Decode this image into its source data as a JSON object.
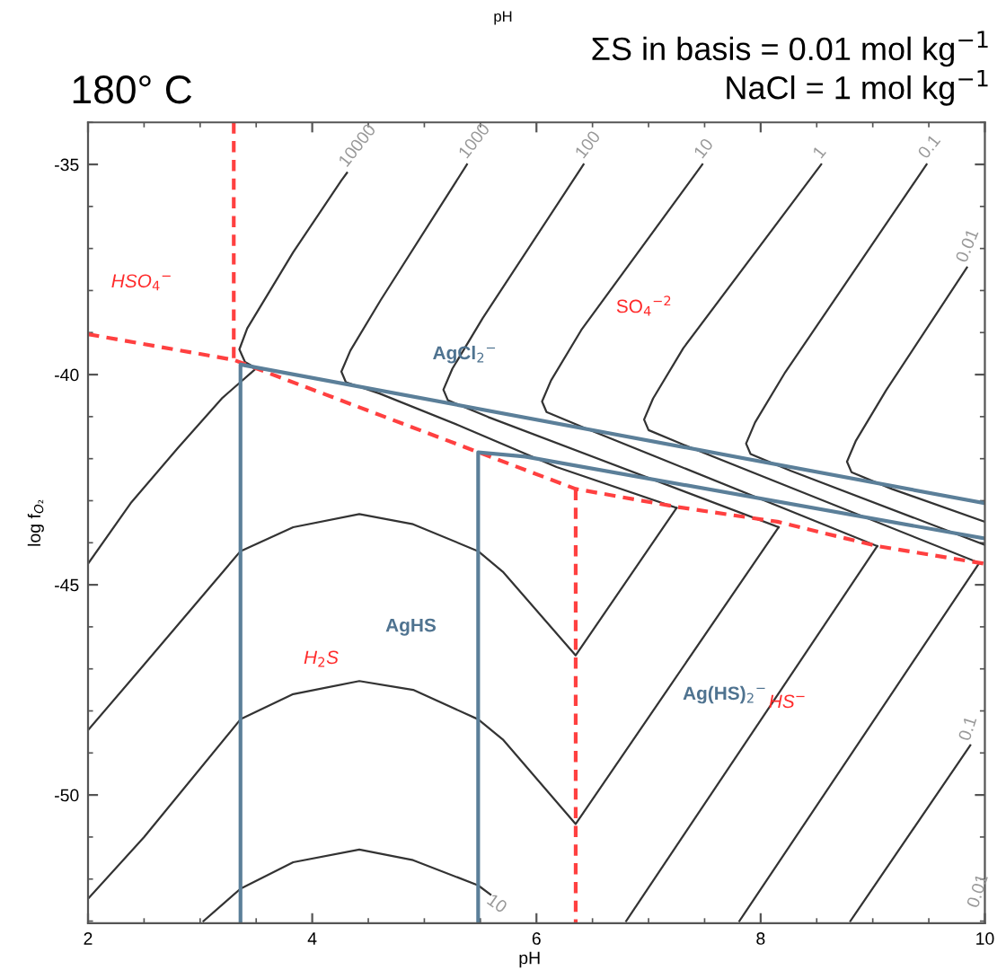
{
  "chart_data": {
    "type": "line",
    "title": "180° C",
    "subtitle": "ΣS in basis = 0.01 mol kg$^{−1}$\nNaCl = 1 mol kg$^{−1}$",
    "xlabel": "pH",
    "ylabel": "log f$_{O₂}$",
    "xlim": [
      2,
      10
    ],
    "xticks": [
      2,
      4,
      6,
      8,
      10
    ],
    "ylim": [
      -53.05,
      -34
    ],
    "yticks": [
      -50,
      -45,
      -40,
      -35
    ],
    "grid": false,
    "legend": false,
    "series": [
      {
        "color": "#333333",
        "x": [
          2,
          2.38,
          2.8,
          3.2,
          3.5,
          3.4,
          3.35,
          3.42,
          3.83,
          4.26,
          4.31
        ],
        "values": [
          -44.5,
          -43.06,
          -41.75,
          -40.55,
          -39.85,
          -39.7,
          -39.4,
          -38.9,
          -37.09,
          -35.38,
          -35.2
        ]
      },
      {
        "color": "#333333",
        "x": [
          7.25,
          6.18,
          5.3,
          4.6,
          4.3,
          4.26,
          4.34,
          4.61,
          5.38
        ],
        "values": [
          -43.17,
          -42.2,
          -41.2,
          -40.45,
          -40.18,
          -39.93,
          -39.43,
          -38.23,
          -35.0
        ]
      },
      {
        "color": "#333333",
        "x": [
          8.16,
          5.57,
          5.21,
          5.17,
          5.25,
          5.52,
          6.42
        ],
        "values": [
          -43.63,
          -41.01,
          -40.61,
          -40.36,
          -39.86,
          -38.66,
          -35.0
        ]
      },
      {
        "color": "#333333",
        "x": [
          9.04,
          6.45,
          6.09,
          6.05,
          6.13,
          6.4,
          7.48
        ],
        "values": [
          -44.08,
          -41.29,
          -40.89,
          -40.64,
          -40.14,
          -38.94,
          -35.0
        ]
      },
      {
        "color": "#333333",
        "x": [
          9.95,
          7.36,
          7.0,
          6.96,
          7.04,
          7.31,
          8.54
        ],
        "values": [
          -44.48,
          -41.72,
          -41.32,
          -41.07,
          -40.57,
          -39.37,
          -35.0
        ]
      },
      {
        "color": "#333333",
        "x": [
          10,
          8.27,
          7.91,
          7.87,
          7.95,
          8.22,
          9.48
        ],
        "values": [
          -44.05,
          -42.29,
          -41.89,
          -41.64,
          -41.14,
          -39.94,
          -35.0
        ]
      },
      {
        "color": "#333333",
        "x": [
          10,
          9.17,
          8.81,
          8.77,
          8.85,
          9.12,
          9.84
        ],
        "values": [
          -43.5,
          -42.72,
          -42.32,
          -42.07,
          -41.57,
          -40.37,
          -37.45
        ]
      },
      {
        "color": "#333333",
        "x": [
          2,
          2.5,
          3.36,
          3.83,
          4.42,
          4.9,
          5.48,
          5.7,
          6.35,
          7.25
        ],
        "values": [
          -48.46,
          -46.9,
          -44.2,
          -43.63,
          -43.32,
          -43.56,
          -44.2,
          -44.69,
          -46.68,
          -43.17
        ]
      },
      {
        "color": "#333333",
        "x": [
          2,
          2.5,
          3.36,
          3.83,
          4.42,
          4.9,
          5.48,
          5.7,
          6.35,
          8.16
        ],
        "values": [
          -52.47,
          -51.0,
          -48.2,
          -47.6,
          -47.29,
          -47.5,
          -48.2,
          -48.68,
          -50.69,
          -43.63
        ]
      },
      {
        "color": "#333333",
        "x": [
          3.03,
          3.36,
          3.83,
          4.42,
          4.9,
          5.48,
          5.59
        ],
        "values": [
          -53.0,
          -52.23,
          -51.6,
          -51.3,
          -51.55,
          -52.15,
          -52.37
        ]
      },
      {
        "color": "#333333",
        "x": [
          6.8,
          9.04
        ],
        "values": [
          -53.0,
          -44.08
        ]
      },
      {
        "color": "#333333",
        "x": [
          7.81,
          9.95
        ],
        "values": [
          -53.0,
          -44.48
        ]
      },
      {
        "color": "#333333",
        "x": [
          8.8,
          9.87
        ],
        "values": [
          -53.0,
          -48.82
        ]
      },
      {
        "color": "#ff4040",
        "line_style": "dashed",
        "x": [
          3.3,
          3.3
        ],
        "values": [
          -34.0,
          -39.65
        ]
      },
      {
        "color": "#ff4040",
        "line_style": "dashed",
        "x": [
          2,
          3.3,
          6.35,
          7.26,
          8.15,
          9.04,
          10
        ],
        "values": [
          -39.04,
          -39.65,
          -42.72,
          -43.15,
          -43.5,
          -44.08,
          -44.5
        ]
      },
      {
        "color": "#ff4040",
        "line_style": "dashed",
        "x": [
          6.35,
          6.35
        ],
        "values": [
          -42.72,
          -53.05
        ]
      },
      {
        "color": "#5b7f99",
        "x": [
          3.36,
          3.36,
          10
        ],
        "values": [
          -53.05,
          -39.76,
          -43.06
        ]
      },
      {
        "color": "#5b7f99",
        "x": [
          5.48,
          5.48,
          5.9,
          10
        ],
        "values": [
          -53.05,
          -41.85,
          -41.95,
          -43.9
        ]
      }
    ],
    "annotations": [
      "pH",
      "10000",
      "1000",
      "100",
      "10",
      "1",
      "0.1",
      "0.01",
      "10",
      "0.1",
      "0.01",
      "HSO$_{4}$$^{−}$",
      "SO$_{4}$$^{−2}$",
      "AgCl$_{2}$$^{−}$",
      "AgHS",
      "H$_{2}$S",
      "Ag(HS)$_{2}$$^{−}$",
      "HS$^{−}$"
    ]
  }
}
